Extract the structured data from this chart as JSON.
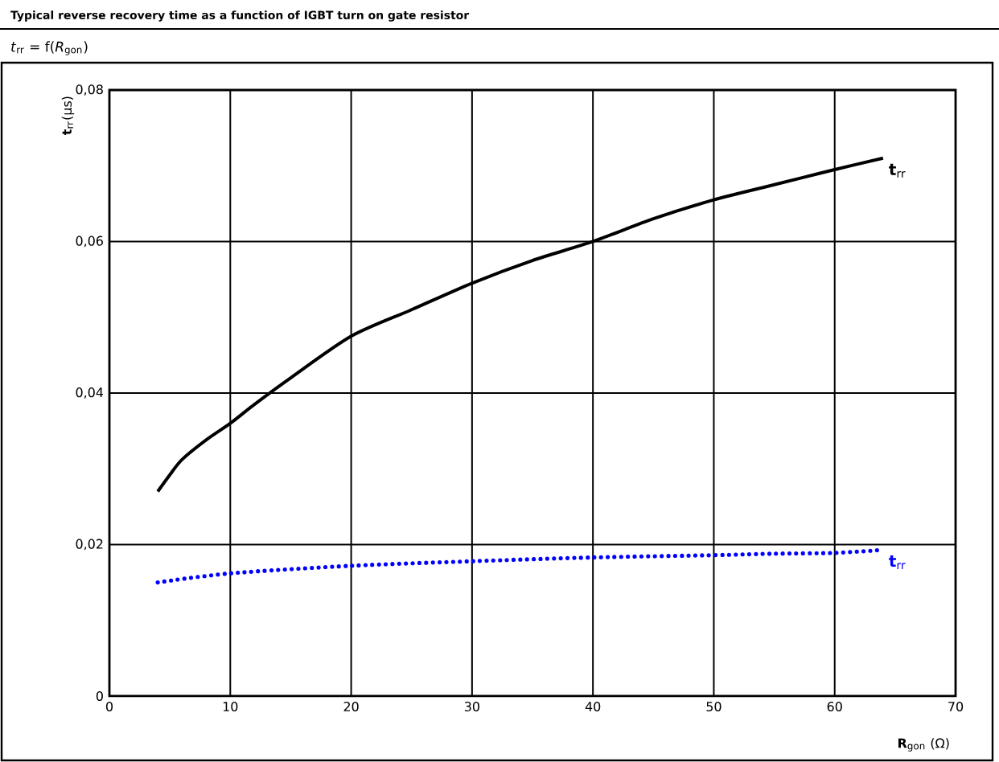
{
  "chart_data": {
    "type": "line",
    "title": "Typical reverse recovery time as a function of IGBT turn on gate resistor",
    "subtitle": "*t*$_{rr}$ = f(*R*$_{gon}$)",
    "xlabel": "**R**$_{gon}$ (Ω)",
    "ylabel": "**t**$_{rr}$(µs)",
    "series": [
      {
        "name": "**t**$_{rr}$",
        "color": "#000000",
        "line_style": "solid",
        "x": [
          4,
          5,
          6,
          8,
          10,
          12,
          15,
          20,
          25,
          30,
          35,
          40,
          45,
          50,
          55,
          60,
          64
        ],
        "values": [
          0.027,
          0.0292,
          0.0312,
          0.0338,
          0.036,
          0.0385,
          0.042,
          0.0475,
          0.051,
          0.0545,
          0.0575,
          0.06,
          0.063,
          0.0655,
          0.0675,
          0.0695,
          0.071
        ]
      },
      {
        "name": "**t**$_{rr}$",
        "color": "#0000ff",
        "line_style": "dotted",
        "x": [
          4,
          10,
          20,
          30,
          40,
          50,
          55,
          60,
          64
        ],
        "values": [
          0.015,
          0.0162,
          0.0172,
          0.0178,
          0.0183,
          0.0186,
          0.0188,
          0.0189,
          0.0193
        ]
      }
    ],
    "xlim": [
      0,
      70
    ],
    "xticks": [
      0,
      10,
      20,
      30,
      40,
      50,
      60,
      70
    ],
    "ylim": [
      0,
      0.08
    ],
    "yticks": [
      0,
      {
        "value": 0.02,
        "label": "0,02"
      },
      {
        "value": 0.04,
        "label": "0,04"
      },
      {
        "value": 0.06,
        "label": "0,06"
      },
      {
        "value": 0.08,
        "label": "0,08"
      }
    ],
    "grid": true,
    "legend": false,
    "marker": "none"
  }
}
